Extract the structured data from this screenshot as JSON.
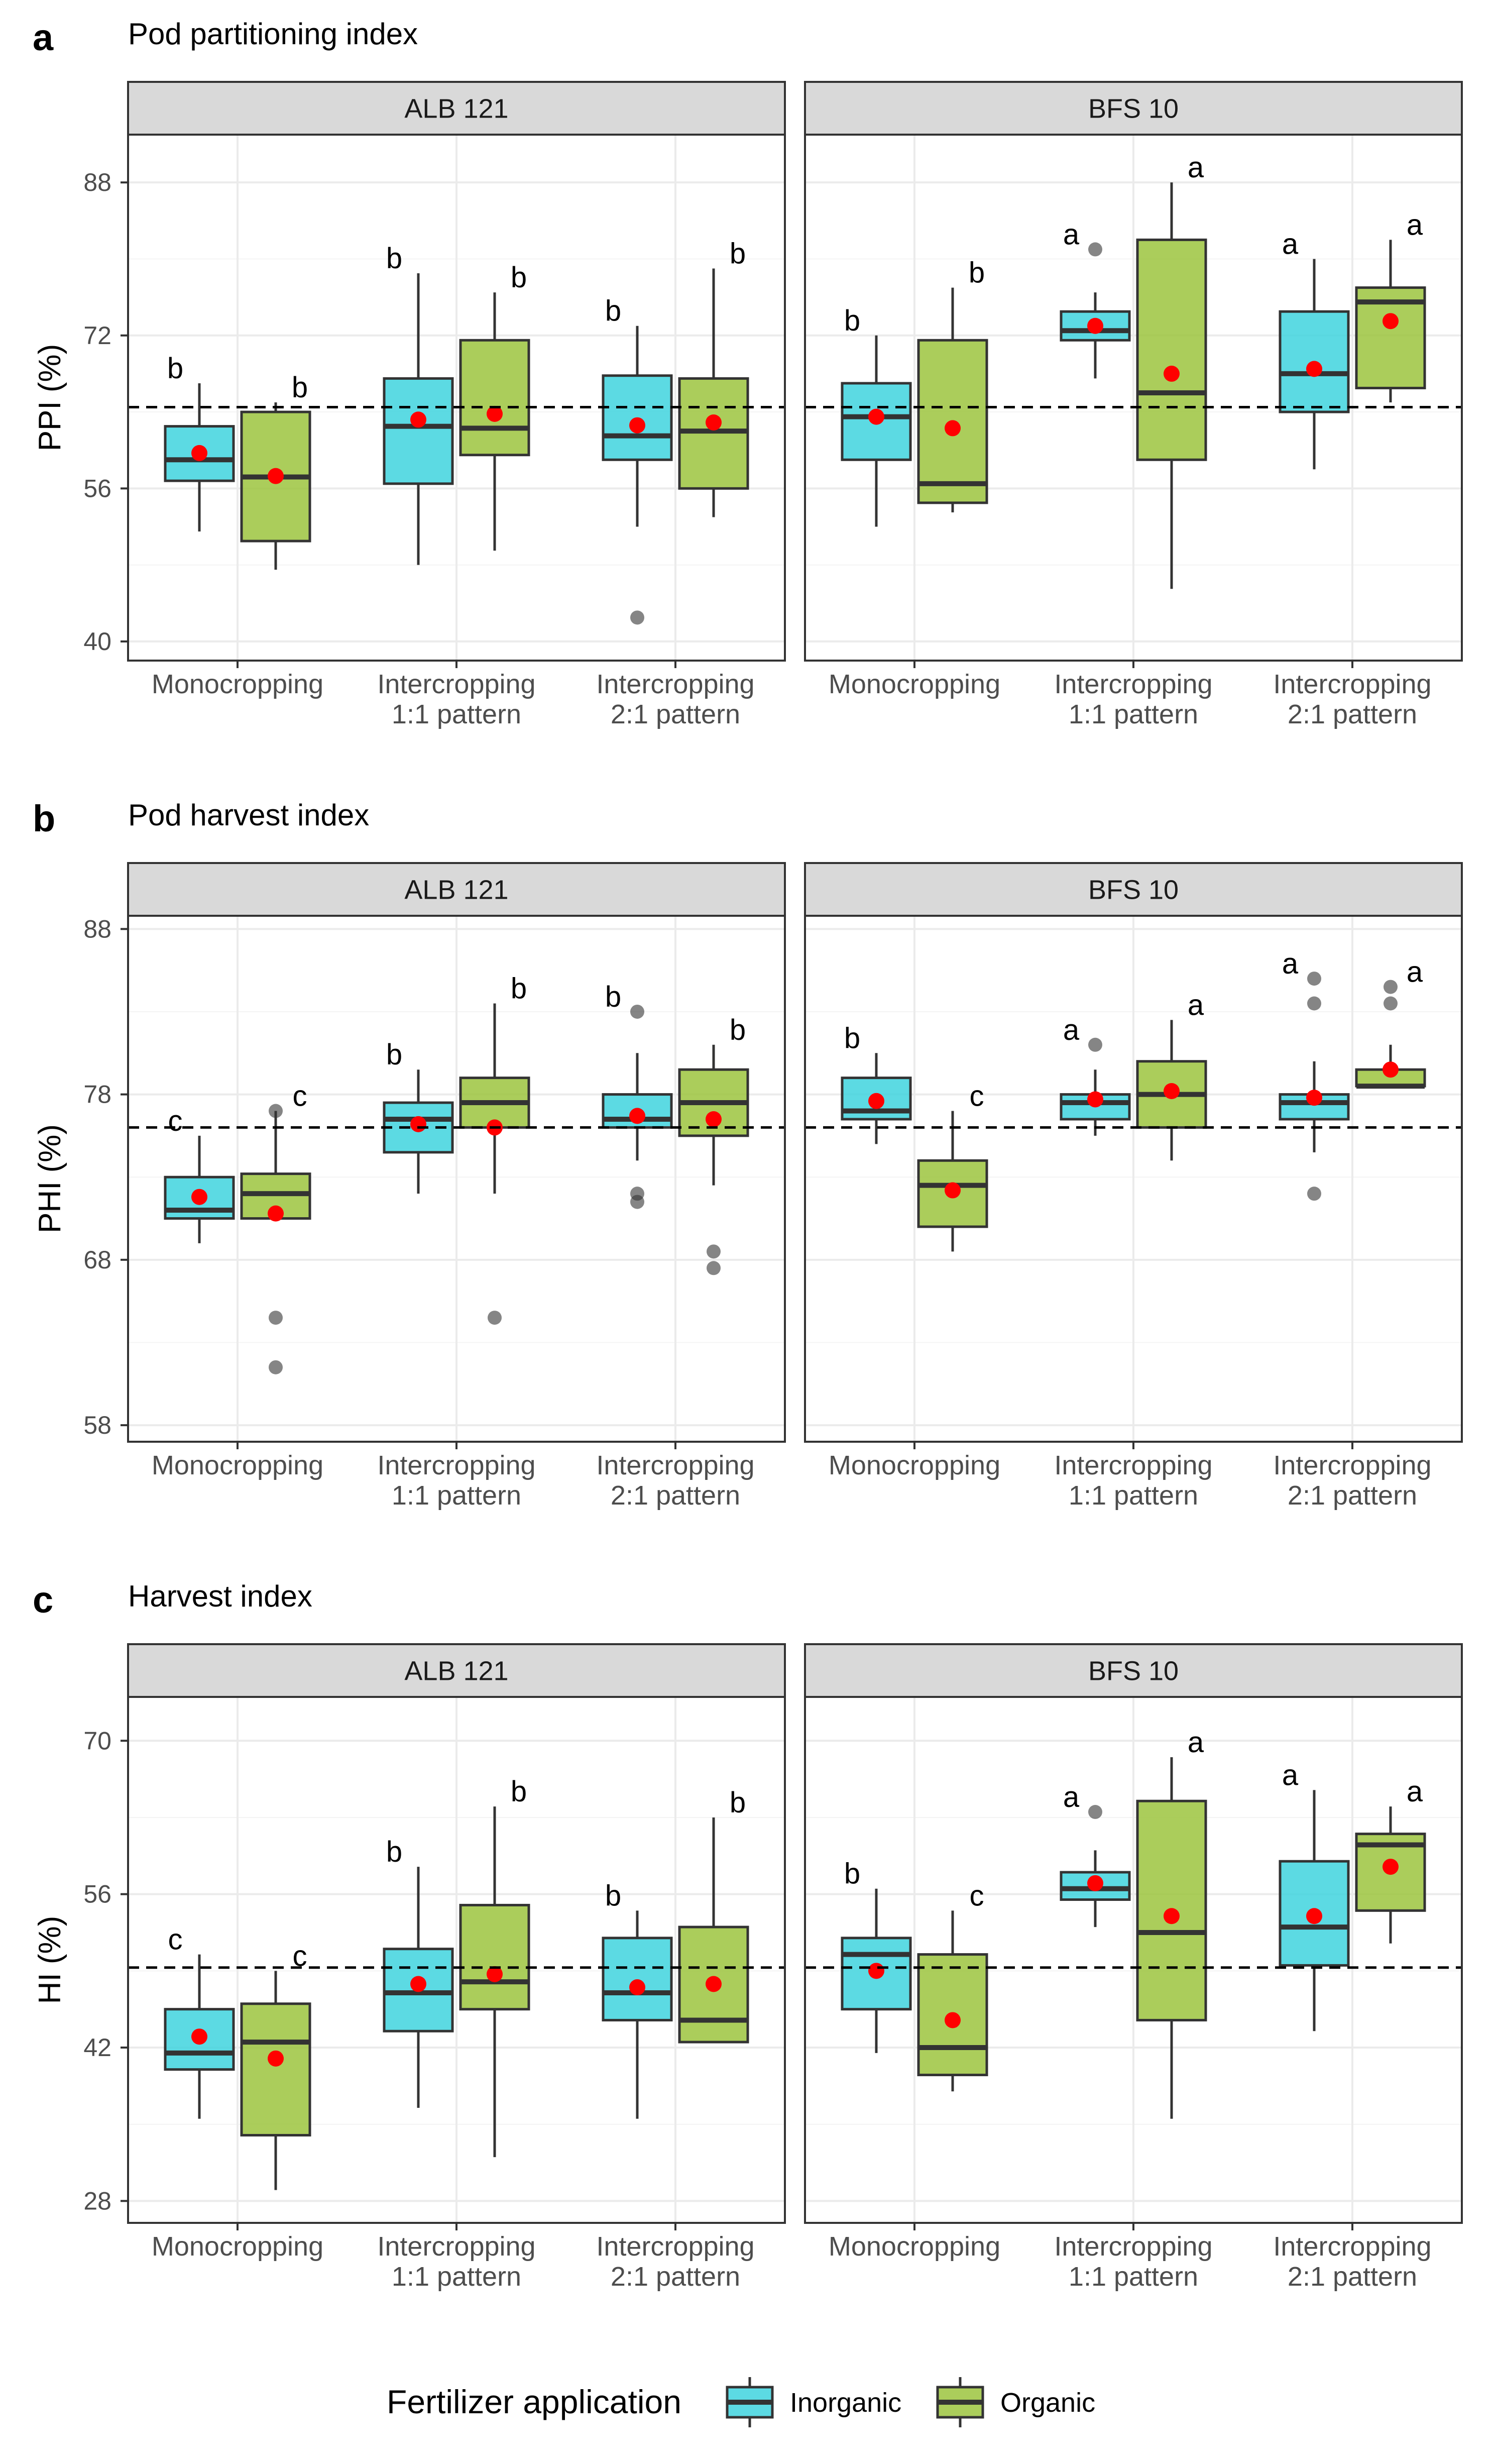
{
  "legend": {
    "title": "Fertilizer application",
    "items": [
      {
        "name": "Inorganic",
        "color": "#3fd4de"
      },
      {
        "name": "Organic",
        "color": "#9cc43e"
      }
    ]
  },
  "colors": {
    "inorganic": "#3fd4de",
    "organic": "#9cc43e",
    "mean_point": "#ff0000",
    "reference_line": "#000000"
  },
  "chart_data": [
    {
      "type": "box",
      "panel": "a",
      "title": "Pod partitioning index",
      "ylabel": "PPI (%)",
      "ylim": [
        38,
        93
      ],
      "yticks": [
        40,
        56,
        72,
        88
      ],
      "reference_line": 64.5,
      "categories": [
        [
          "Monocropping"
        ],
        [
          "Intercropping",
          "1:1 pattern"
        ],
        [
          "Intercropping",
          "2:1 pattern"
        ]
      ],
      "facets": [
        {
          "label": "ALB 121",
          "groups": [
            {
              "category": 0,
              "fertilizer": "Inorganic",
              "whisker_low": 51.5,
              "q1": 56.8,
              "median": 59.0,
              "q3": 62.5,
              "whisker_high": 67.0,
              "mean": 59.7,
              "outliers": [],
              "letter": "b"
            },
            {
              "category": 0,
              "fertilizer": "Organic",
              "whisker_low": 47.5,
              "q1": 50.5,
              "median": 57.2,
              "q3": 64.0,
              "whisker_high": 65.0,
              "mean": 57.3,
              "outliers": [],
              "letter": "b"
            },
            {
              "category": 1,
              "fertilizer": "Inorganic",
              "whisker_low": 48.0,
              "q1": 56.5,
              "median": 62.5,
              "q3": 67.5,
              "whisker_high": 78.5,
              "mean": 63.2,
              "outliers": [],
              "letter": "b"
            },
            {
              "category": 1,
              "fertilizer": "Organic",
              "whisker_low": 49.5,
              "q1": 59.5,
              "median": 62.3,
              "q3": 71.5,
              "whisker_high": 76.5,
              "mean": 63.8,
              "outliers": [],
              "letter": "b"
            },
            {
              "category": 2,
              "fertilizer": "Inorganic",
              "whisker_low": 52.0,
              "q1": 59.0,
              "median": 61.5,
              "q3": 67.8,
              "whisker_high": 73.0,
              "mean": 62.6,
              "outliers": [
                42.5
              ],
              "letter": "b"
            },
            {
              "category": 2,
              "fertilizer": "Organic",
              "whisker_low": 53.0,
              "q1": 56.0,
              "median": 62.0,
              "q3": 67.5,
              "whisker_high": 79.0,
              "mean": 62.9,
              "outliers": [],
              "letter": "b"
            }
          ]
        },
        {
          "label": "BFS 10",
          "groups": [
            {
              "category": 0,
              "fertilizer": "Inorganic",
              "whisker_low": 52.0,
              "q1": 59.0,
              "median": 63.5,
              "q3": 67.0,
              "whisker_high": 72.0,
              "mean": 63.5,
              "outliers": [],
              "letter": "b"
            },
            {
              "category": 0,
              "fertilizer": "Organic",
              "whisker_low": 53.5,
              "q1": 54.5,
              "median": 56.5,
              "q3": 71.5,
              "whisker_high": 77.0,
              "mean": 62.3,
              "outliers": [],
              "letter": "b"
            },
            {
              "category": 1,
              "fertilizer": "Inorganic",
              "whisker_low": 67.5,
              "q1": 71.5,
              "median": 72.5,
              "q3": 74.5,
              "whisker_high": 76.5,
              "mean": 73.0,
              "outliers": [
                81.0
              ],
              "letter": "a"
            },
            {
              "category": 1,
              "fertilizer": "Organic",
              "whisker_low": 45.5,
              "q1": 59.0,
              "median": 66.0,
              "q3": 82.0,
              "whisker_high": 88.0,
              "mean": 68.0,
              "outliers": [],
              "letter": "a"
            },
            {
              "category": 2,
              "fertilizer": "Inorganic",
              "whisker_low": 58.0,
              "q1": 64.0,
              "median": 68.0,
              "q3": 74.5,
              "whisker_high": 80.0,
              "mean": 68.5,
              "outliers": [],
              "letter": "a"
            },
            {
              "category": 2,
              "fertilizer": "Organic",
              "whisker_low": 65.0,
              "q1": 66.5,
              "median": 75.5,
              "q3": 77.0,
              "whisker_high": 82.0,
              "mean": 73.5,
              "outliers": [],
              "letter": "a"
            }
          ]
        }
      ]
    },
    {
      "type": "box",
      "panel": "b",
      "title": "Pod harvest index",
      "ylabel": "PHI (%)",
      "ylim": [
        57,
        88.8
      ],
      "yticks": [
        58,
        68,
        78,
        88
      ],
      "reference_line": 76.0,
      "categories": [
        [
          "Monocropping"
        ],
        [
          "Intercropping",
          "1:1 pattern"
        ],
        [
          "Intercropping",
          "2:1 pattern"
        ]
      ],
      "facets": [
        {
          "label": "ALB 121",
          "groups": [
            {
              "category": 0,
              "fertilizer": "Inorganic",
              "whisker_low": 69.0,
              "q1": 70.5,
              "median": 71.0,
              "q3": 73.0,
              "whisker_high": 75.5,
              "mean": 71.8,
              "outliers": [],
              "letter": "c"
            },
            {
              "category": 0,
              "fertilizer": "Organic",
              "whisker_low": 70.5,
              "q1": 70.5,
              "median": 72.0,
              "q3": 73.2,
              "whisker_high": 77.0,
              "mean": 70.8,
              "outliers": [
                64.5,
                61.5,
                77.0
              ],
              "letter": "c"
            },
            {
              "category": 1,
              "fertilizer": "Inorganic",
              "whisker_low": 72.0,
              "q1": 74.5,
              "median": 76.5,
              "q3": 77.5,
              "whisker_high": 79.5,
              "mean": 76.2,
              "outliers": [],
              "letter": "b"
            },
            {
              "category": 1,
              "fertilizer": "Organic",
              "whisker_low": 72.0,
              "q1": 76.0,
              "median": 77.5,
              "q3": 79.0,
              "whisker_high": 83.5,
              "mean": 76.0,
              "outliers": [
                64.5
              ],
              "letter": "b"
            },
            {
              "category": 2,
              "fertilizer": "Inorganic",
              "whisker_low": 74.0,
              "q1": 76.0,
              "median": 76.5,
              "q3": 78.0,
              "whisker_high": 80.5,
              "mean": 76.7,
              "outliers": [
                72.0,
                71.5,
                83.0
              ],
              "letter": "b"
            },
            {
              "category": 2,
              "fertilizer": "Organic",
              "whisker_low": 72.5,
              "q1": 75.5,
              "median": 77.5,
              "q3": 79.5,
              "whisker_high": 81.0,
              "mean": 76.5,
              "outliers": [
                68.5,
                67.5
              ],
              "letter": "b"
            }
          ]
        },
        {
          "label": "BFS 10",
          "groups": [
            {
              "category": 0,
              "fertilizer": "Inorganic",
              "whisker_low": 75.0,
              "q1": 76.5,
              "median": 77.0,
              "q3": 79.0,
              "whisker_high": 80.5,
              "mean": 77.6,
              "outliers": [],
              "letter": "b"
            },
            {
              "category": 0,
              "fertilizer": "Organic",
              "whisker_low": 68.5,
              "q1": 70.0,
              "median": 72.5,
              "q3": 74.0,
              "whisker_high": 77.0,
              "mean": 72.2,
              "outliers": [],
              "letter": "c"
            },
            {
              "category": 1,
              "fertilizer": "Inorganic",
              "whisker_low": 75.5,
              "q1": 76.5,
              "median": 77.5,
              "q3": 78.0,
              "whisker_high": 79.5,
              "mean": 77.7,
              "outliers": [
                81.0
              ],
              "letter": "a"
            },
            {
              "category": 1,
              "fertilizer": "Organic",
              "whisker_low": 74.0,
              "q1": 76.0,
              "median": 78.0,
              "q3": 80.0,
              "whisker_high": 82.5,
              "mean": 78.2,
              "outliers": [],
              "letter": "a"
            },
            {
              "category": 2,
              "fertilizer": "Inorganic",
              "whisker_low": 74.5,
              "q1": 76.5,
              "median": 77.5,
              "q3": 78.0,
              "whisker_high": 80.0,
              "mean": 77.8,
              "outliers": [
                72.0,
                83.5,
                85.0
              ],
              "letter": "a"
            },
            {
              "category": 2,
              "fertilizer": "Organic",
              "whisker_low": 78.5,
              "q1": 78.5,
              "median": 78.5,
              "q3": 79.5,
              "whisker_high": 81.0,
              "mean": 79.5,
              "outliers": [
                84.5,
                83.5
              ],
              "letter": "a"
            }
          ]
        }
      ]
    },
    {
      "type": "box",
      "panel": "c",
      "title": "Harvest index",
      "ylabel": "HI (%)",
      "ylim": [
        26,
        74
      ],
      "yticks": [
        28,
        42,
        56,
        70
      ],
      "reference_line": 49.3,
      "categories": [
        [
          "Monocropping"
        ],
        [
          "Intercropping",
          "1:1 pattern"
        ],
        [
          "Intercropping",
          "2:1 pattern"
        ]
      ],
      "facets": [
        {
          "label": "ALB 121",
          "groups": [
            {
              "category": 0,
              "fertilizer": "Inorganic",
              "whisker_low": 35.5,
              "q1": 40.0,
              "median": 41.5,
              "q3": 45.5,
              "whisker_high": 50.5,
              "mean": 43.0,
              "outliers": [],
              "letter": "c"
            },
            {
              "category": 0,
              "fertilizer": "Organic",
              "whisker_low": 29.0,
              "q1": 34.0,
              "median": 42.5,
              "q3": 46.0,
              "whisker_high": 49.0,
              "mean": 41.0,
              "outliers": [],
              "letter": "c"
            },
            {
              "category": 1,
              "fertilizer": "Inorganic",
              "whisker_low": 36.5,
              "q1": 43.5,
              "median": 47.0,
              "q3": 51.0,
              "whisker_high": 58.5,
              "mean": 47.8,
              "outliers": [],
              "letter": "b"
            },
            {
              "category": 1,
              "fertilizer": "Organic",
              "whisker_low": 32.0,
              "q1": 45.5,
              "median": 48.0,
              "q3": 55.0,
              "whisker_high": 64.0,
              "mean": 48.7,
              "outliers": [],
              "letter": "b"
            },
            {
              "category": 2,
              "fertilizer": "Inorganic",
              "whisker_low": 35.5,
              "q1": 44.5,
              "median": 47.0,
              "q3": 52.0,
              "whisker_high": 54.5,
              "mean": 47.5,
              "outliers": [],
              "letter": "b"
            },
            {
              "category": 2,
              "fertilizer": "Organic",
              "whisker_low": 42.5,
              "q1": 42.5,
              "median": 44.5,
              "q3": 53.0,
              "whisker_high": 63.0,
              "mean": 47.8,
              "outliers": [],
              "letter": "b"
            }
          ]
        },
        {
          "label": "BFS 10",
          "groups": [
            {
              "category": 0,
              "fertilizer": "Inorganic",
              "whisker_low": 41.5,
              "q1": 45.5,
              "median": 50.5,
              "q3": 52.0,
              "whisker_high": 56.5,
              "mean": 49.0,
              "outliers": [],
              "letter": "b"
            },
            {
              "category": 0,
              "fertilizer": "Organic",
              "whisker_low": 38.0,
              "q1": 39.5,
              "median": 42.0,
              "q3": 50.5,
              "whisker_high": 54.5,
              "mean": 44.5,
              "outliers": [],
              "letter": "c"
            },
            {
              "category": 1,
              "fertilizer": "Inorganic",
              "whisker_low": 53.0,
              "q1": 55.5,
              "median": 56.5,
              "q3": 58.0,
              "whisker_high": 60.0,
              "mean": 57.0,
              "outliers": [
                63.5
              ],
              "letter": "a"
            },
            {
              "category": 1,
              "fertilizer": "Organic",
              "whisker_low": 35.5,
              "q1": 44.5,
              "median": 52.5,
              "q3": 64.5,
              "whisker_high": 68.5,
              "mean": 54.0,
              "outliers": [],
              "letter": "a"
            },
            {
              "category": 2,
              "fertilizer": "Inorganic",
              "whisker_low": 43.5,
              "q1": 49.5,
              "median": 53.0,
              "q3": 59.0,
              "whisker_high": 65.5,
              "mean": 54.0,
              "outliers": [],
              "letter": "a"
            },
            {
              "category": 2,
              "fertilizer": "Organic",
              "whisker_low": 51.5,
              "q1": 54.5,
              "median": 60.5,
              "q3": 61.5,
              "whisker_high": 64.0,
              "mean": 58.5,
              "outliers": [],
              "letter": "a"
            }
          ]
        }
      ]
    }
  ]
}
